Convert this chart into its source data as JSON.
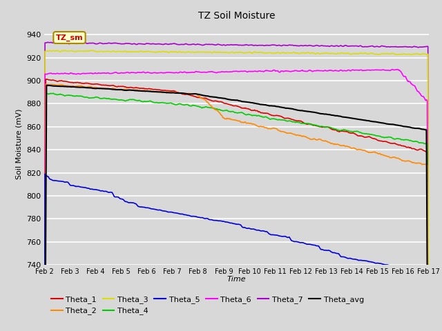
{
  "title": "TZ Soil Moisture",
  "xlabel": "Time",
  "ylabel": "Soil Moisture (mV)",
  "ylim": [
    740,
    950
  ],
  "xlim": [
    0,
    15
  ],
  "background_color": "#d8d8d8",
  "plot_bg_color": "#d8d8d8",
  "fig_bg_color": "#d8d8d8",
  "xtick_labels": [
    "Feb 2",
    "Feb 3",
    "Feb 4",
    "Feb 5",
    "Feb 6",
    "Feb 7",
    "Feb 8",
    "Feb 9",
    "Feb 10",
    "Feb 11",
    "Feb 12",
    "Feb 13",
    "Feb 14",
    "Feb 15",
    "Feb 16",
    "Feb 17"
  ],
  "ytick_values": [
    740,
    760,
    780,
    800,
    820,
    840,
    860,
    880,
    900,
    920,
    940
  ],
  "legend_label": "TZ_sm",
  "legend_box_color": "#ffffcc",
  "legend_box_border": "#aa8800",
  "legend_text_color": "#cc0000",
  "series_colors": {
    "Theta_1": "#dd0000",
    "Theta_2": "#ff8800",
    "Theta_3": "#dddd00",
    "Theta_4": "#00cc00",
    "Theta_5": "#0000dd",
    "Theta_6": "#ff00ff",
    "Theta_7": "#aa00cc",
    "Theta_avg": "#000000"
  }
}
